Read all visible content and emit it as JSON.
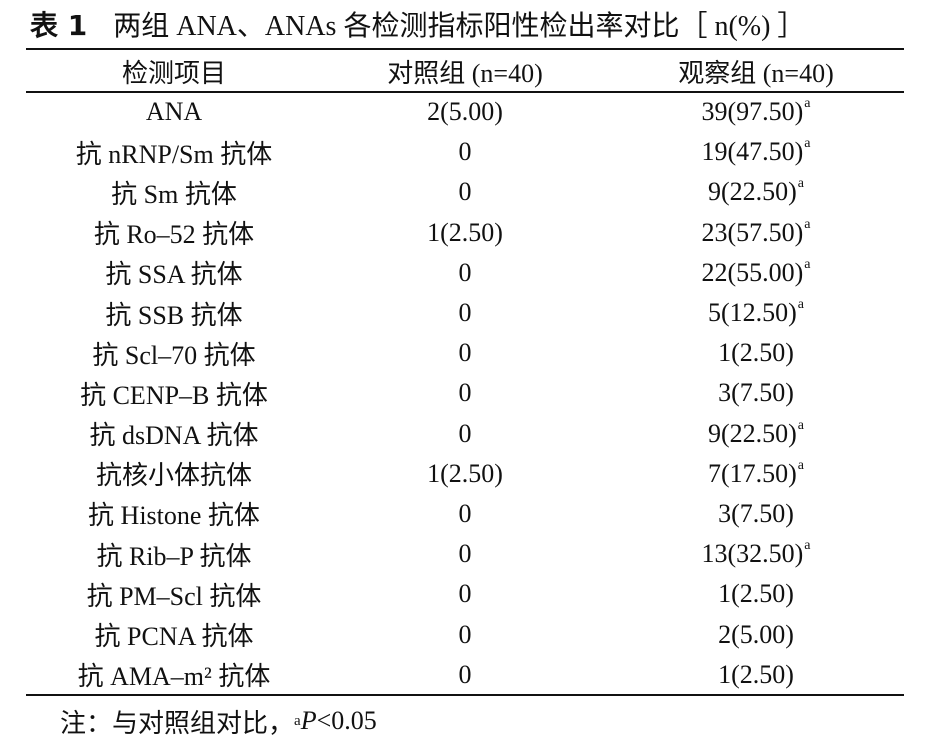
{
  "caption": {
    "table_no": "表 1",
    "title": "两组 ANA、ANAs 各检测指标阳性检出率对比［ n(%) ］"
  },
  "headers": [
    "检测项目",
    "对照组 (n=40)",
    "观察组 (n=40)"
  ],
  "rows": [
    {
      "item": "ANA",
      "control": "2(5.00)",
      "observe": "39(97.50)",
      "mark": "a"
    },
    {
      "item": "抗 nRNP/Sm 抗体",
      "control": "0",
      "observe": "19(47.50)",
      "mark": "a"
    },
    {
      "item": "抗 Sm 抗体",
      "control": "0",
      "observe": "9(22.50)",
      "mark": "a"
    },
    {
      "item": "抗 Ro–52 抗体",
      "control": "1(2.50)",
      "observe": "23(57.50)",
      "mark": "a"
    },
    {
      "item": "抗 SSA 抗体",
      "control": "0",
      "observe": "22(55.00)",
      "mark": "a"
    },
    {
      "item": "抗 SSB 抗体",
      "control": "0",
      "observe": "5(12.50)",
      "mark": "a"
    },
    {
      "item": "抗 Scl–70 抗体",
      "control": "0",
      "observe": "1(2.50)",
      "mark": ""
    },
    {
      "item": "抗 CENP–B 抗体",
      "control": "0",
      "observe": "3(7.50)",
      "mark": ""
    },
    {
      "item": "抗 dsDNA 抗体",
      "control": "0",
      "observe": "9(22.50)",
      "mark": "a"
    },
    {
      "item": "抗核小体抗体",
      "control": "1(2.50)",
      "observe": "7(17.50)",
      "mark": "a"
    },
    {
      "item": "抗 Histone 抗体",
      "control": "0",
      "observe": "3(7.50)",
      "mark": ""
    },
    {
      "item": "抗 Rib–P 抗体",
      "control": "0",
      "observe": "13(32.50)",
      "mark": "a"
    },
    {
      "item": "抗 PM–Scl 抗体",
      "control": "0",
      "observe": "1(2.50)",
      "mark": ""
    },
    {
      "item": "抗 PCNA 抗体",
      "control": "0",
      "observe": "2(5.00)",
      "mark": ""
    },
    {
      "item": "抗 AMA–m² 抗体",
      "control": "0",
      "observe": "1(2.50)",
      "mark": ""
    }
  ],
  "note": {
    "prefix": "注：与对照组对比，",
    "mark": "a",
    "p_symbol": "P",
    "threshold": "<0.05"
  }
}
